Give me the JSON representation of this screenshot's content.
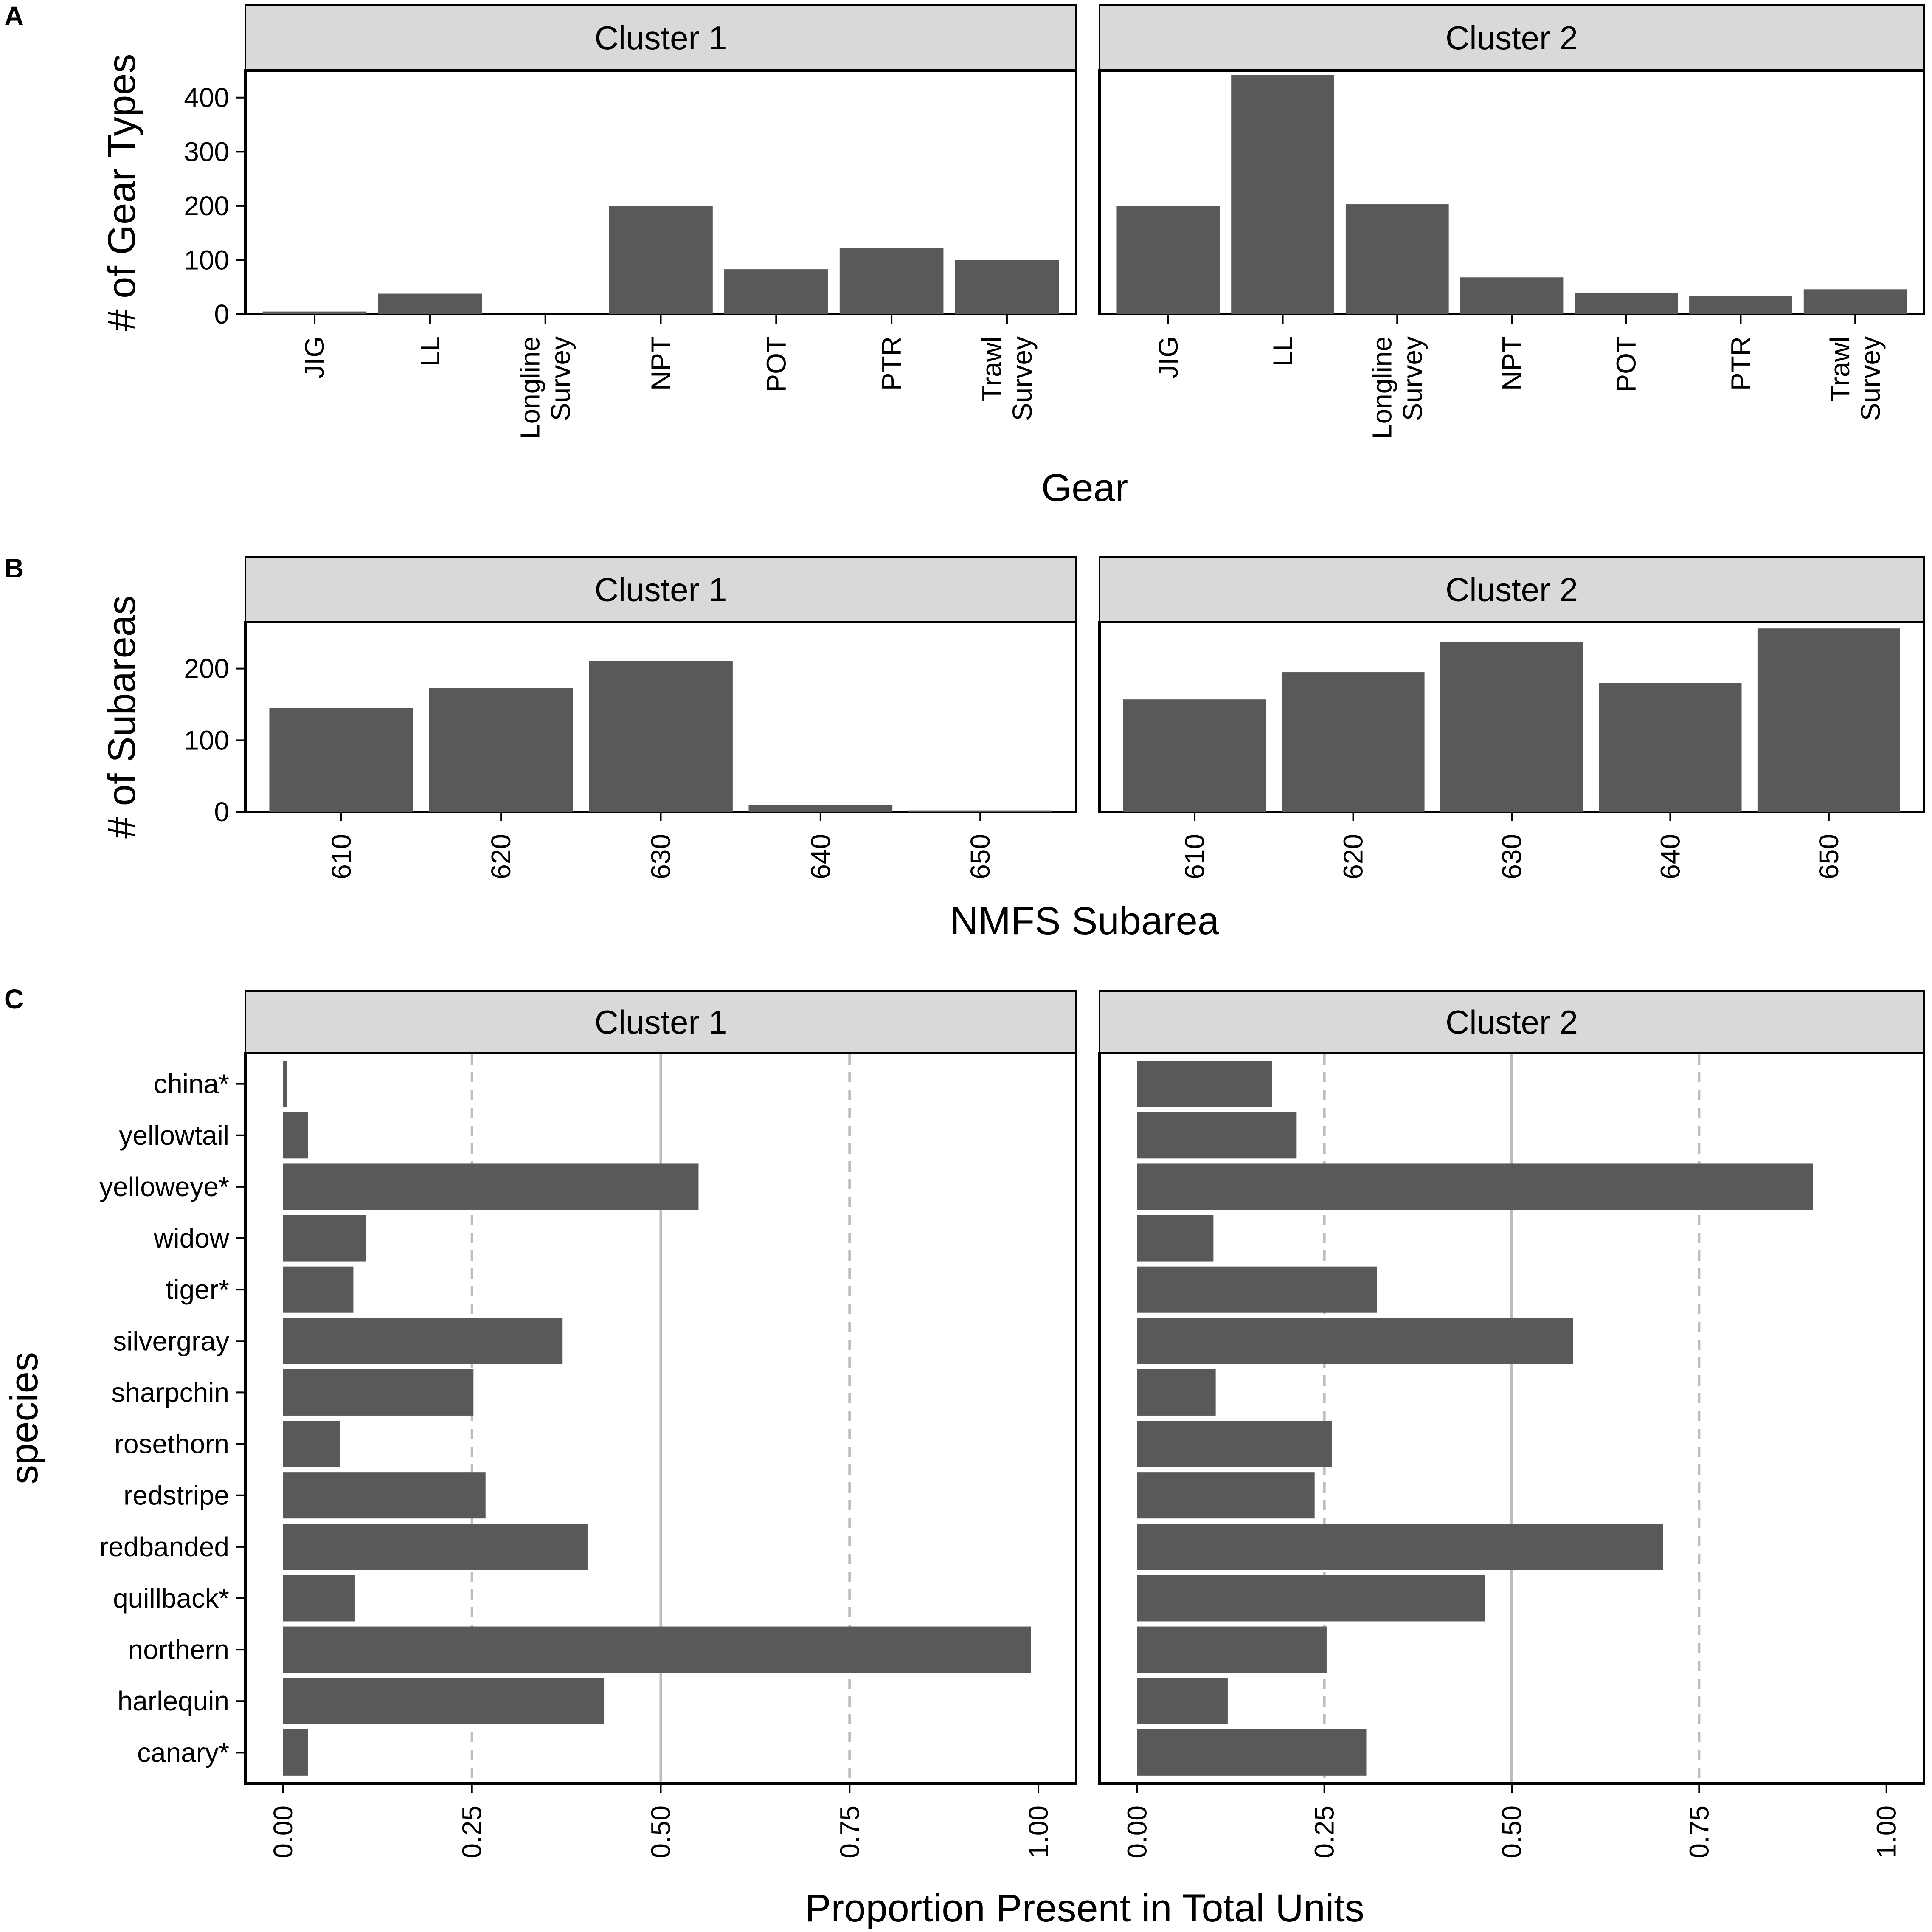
{
  "chart_data": [
    {
      "panel": "A",
      "type": "bar",
      "xlabel": "Gear",
      "ylabel": "# of Gear Types",
      "ylim": [
        0,
        450
      ],
      "yticks": [
        0,
        100,
        200,
        300,
        400
      ],
      "yticklabels": [
        "0",
        "100",
        "200",
        "300",
        "400"
      ],
      "categories": [
        "JIG",
        "LL",
        "Longline Survey",
        "NPT",
        "POT",
        "PTR",
        "Trawl Survey"
      ],
      "category_lines": [
        [
          "JIG"
        ],
        [
          "LL"
        ],
        [
          "Longline",
          "Survey"
        ],
        [
          "NPT"
        ],
        [
          "POT"
        ],
        [
          "PTR"
        ],
        [
          "Trawl",
          "Survey"
        ]
      ],
      "facets": [
        {
          "label": "Cluster 1",
          "values": [
            5,
            38,
            0,
            200,
            83,
            123,
            100
          ]
        },
        {
          "label": "Cluster 2",
          "values": [
            200,
            442,
            203,
            68,
            40,
            33,
            46
          ]
        }
      ]
    },
    {
      "panel": "B",
      "type": "bar",
      "xlabel": "NMFS Subarea",
      "ylabel": "# of Subareas",
      "ylim": [
        0,
        265
      ],
      "yticks": [
        0,
        100,
        200
      ],
      "yticklabels": [
        "0",
        "100",
        "200"
      ],
      "categories": [
        "610",
        "620",
        "630",
        "640",
        "650"
      ],
      "facets": [
        {
          "label": "Cluster 1",
          "values": [
            145,
            173,
            211,
            10,
            2
          ]
        },
        {
          "label": "Cluster 2",
          "values": [
            157,
            195,
            237,
            180,
            256
          ]
        }
      ]
    },
    {
      "panel": "C",
      "type": "bar",
      "orientation": "horizontal",
      "xlabel": "Proportion Present in Total Units",
      "ylabel": "species",
      "xlim": [
        0,
        1
      ],
      "xticks": [
        0,
        0.25,
        0.5,
        0.75,
        1
      ],
      "xticklabels": [
        "0.00",
        "0.25",
        "0.50",
        "0.75",
        "1.00"
      ],
      "reference_lines": {
        "solid": [
          0.5
        ],
        "dashed": [
          0.25,
          0.75
        ]
      },
      "categories": [
        "china*",
        "yellowtail",
        "yelloweye*",
        "widow",
        "tiger*",
        "silvergray",
        "sharpchin",
        "rosethorn",
        "redstripe",
        "redbanded",
        "quillback*",
        "northern",
        "harlequin",
        "canary*"
      ],
      "facets": [
        {
          "label": "Cluster 1",
          "values": [
            0.005,
            0.033,
            0.55,
            0.11,
            0.093,
            0.37,
            0.252,
            0.075,
            0.268,
            0.403,
            0.095,
            0.99,
            0.425,
            0.033
          ]
        },
        {
          "label": "Cluster 2",
          "values": [
            0.18,
            0.213,
            0.902,
            0.102,
            0.32,
            0.582,
            0.105,
            0.26,
            0.237,
            0.702,
            0.464,
            0.253,
            0.121,
            0.306
          ]
        }
      ]
    }
  ]
}
